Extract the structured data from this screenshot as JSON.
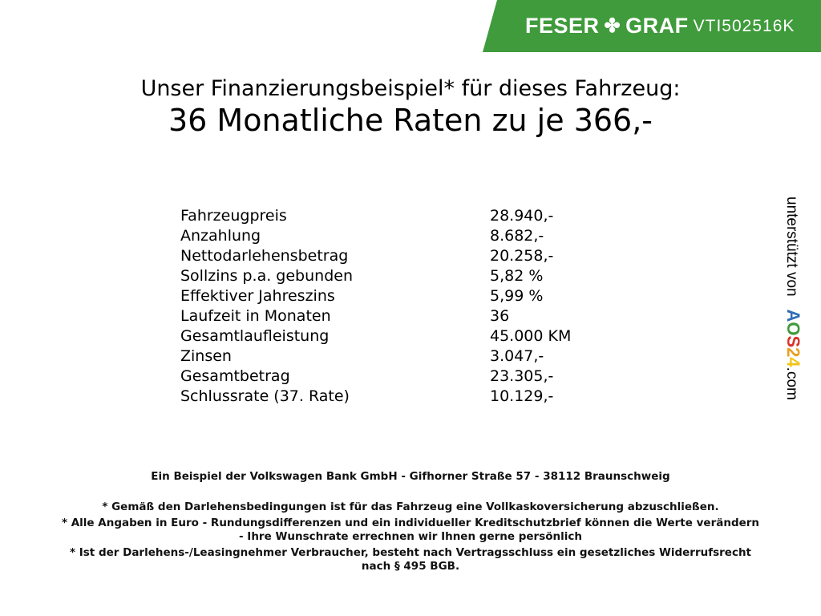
{
  "header": {
    "brand_left": "FESER",
    "brand_right": "GRAF",
    "vehicle_id": "VTI502516K",
    "brand_color": "#3f9b3b"
  },
  "title": {
    "line1": "Unser Finanzierungsbeispiel* für dieses Fahrzeug:",
    "line2": "36 Monatliche Raten zu je 366,-"
  },
  "rows": [
    {
      "label": "Fahrzeugpreis",
      "value": "28.940,-"
    },
    {
      "label": "Anzahlung",
      "value": "8.682,-"
    },
    {
      "label": "Nettodarlehensbetrag",
      "value": "20.258,-"
    },
    {
      "label": "Sollzins p.a. gebunden",
      "value": "5,82 %"
    },
    {
      "label": "Effektiver Jahreszins",
      "value": "5,99 %"
    },
    {
      "label": "Laufzeit in Monaten",
      "value": "36"
    },
    {
      "label": "Gesamtlaufleistung",
      "value": "45.000 KM"
    },
    {
      "label": "Zinsen",
      "value": "3.047,-"
    },
    {
      "label": "Gesamtbetrag",
      "value": "23.305,-"
    },
    {
      "label": "Schlussrate (37. Rate)",
      "value": "10.129,-"
    }
  ],
  "footer": {
    "bank": "Ein Beispiel der Volkswagen Bank GmbH - Gifhorner Straße 57 - 38112 Braunschweig",
    "note1": "* Gemäß den Darlehensbedingungen ist für das Fahrzeug eine Vollkaskoversicherung abzuschließen.",
    "note2a": "* Alle Angaben in Euro - Rundungsdifferenzen und ein individueller Kreditschutzbrief können die Werte verändern",
    "note2b": "- Ihre Wunschrate errechnen wir Ihnen gerne persönlich",
    "note3a": "* Ist der Darlehens-/Leasingnehmer Verbraucher, besteht nach Vertragsschluss ein gesetzliches Widerrufsrecht",
    "note3b": "nach § 495 BGB."
  },
  "side": {
    "text": "unterstützt von",
    "logo": [
      "A",
      "O",
      "S",
      "2",
      "4"
    ],
    "logo_colors": [
      "#2f6db5",
      "#3f9b3b",
      "#d9342b",
      "#e8a020",
      "#f0c419"
    ],
    "suffix": ".com"
  }
}
